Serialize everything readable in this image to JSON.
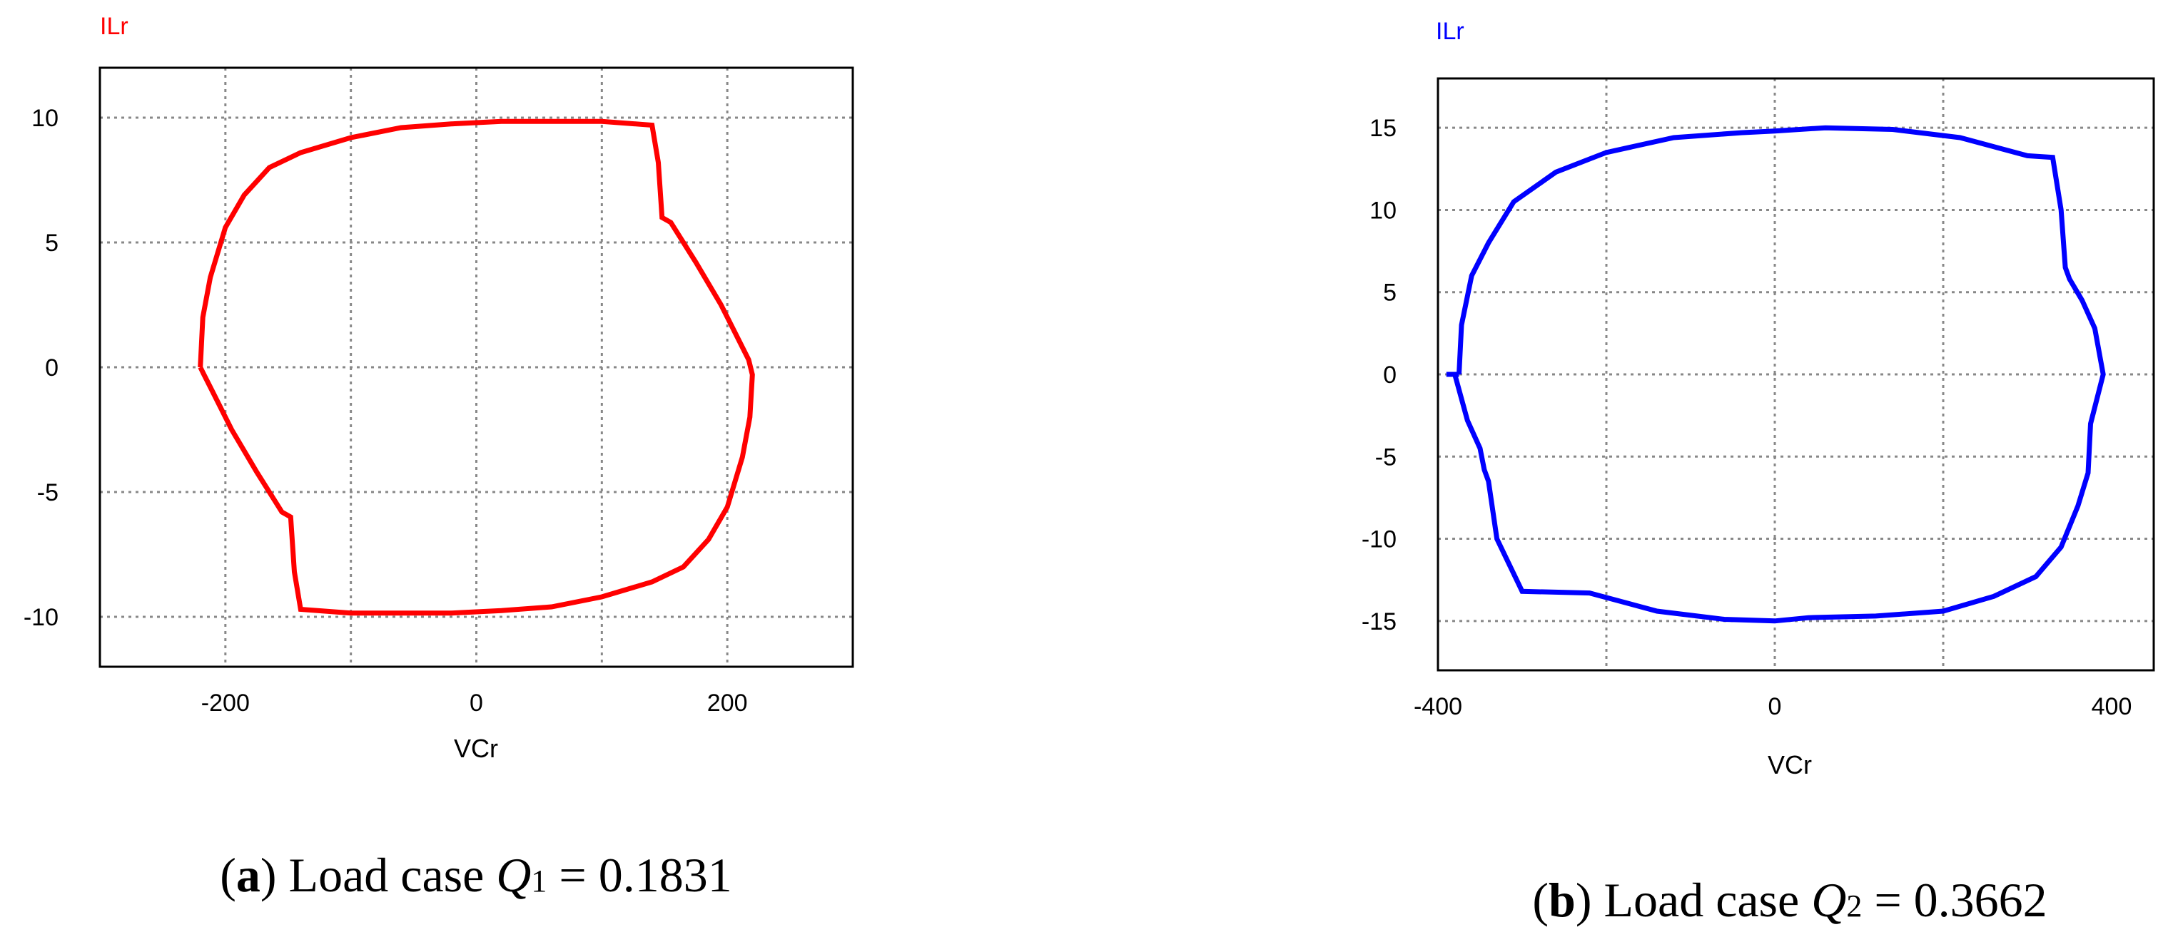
{
  "chart_data": [
    {
      "type": "line",
      "caption": {
        "panel": "a",
        "text": "Load case",
        "var": "Q",
        "sub": "1",
        "eq": "=",
        "val": "0.1831"
      },
      "ylabel": "ILr",
      "xlabel": "VCr",
      "xlim": [
        -300,
        300
      ],
      "ylim": [
        -12,
        12
      ],
      "xticks": [
        -200,
        0,
        200
      ],
      "yticks": [
        10,
        5,
        0,
        -5,
        -10
      ],
      "grid_x": [
        -200,
        -100,
        0,
        100,
        200
      ],
      "grid_y": [
        10,
        5,
        0,
        -5,
        -10
      ],
      "grid": true,
      "series": [
        {
          "color": "#ff0000",
          "x": [
            -220,
            -218,
            -212,
            -200,
            -185,
            -165,
            -140,
            -100,
            -60,
            -20,
            0,
            20,
            60,
            100,
            140,
            145,
            148,
            155,
            175,
            195,
            210,
            217,
            220,
            218,
            212,
            200,
            185,
            165,
            140,
            100,
            60,
            20,
            0,
            -20,
            -60,
            -100,
            -140,
            -145,
            -148,
            -155,
            -175,
            -195,
            -210,
            -217,
            -220
          ],
          "y": [
            0,
            2,
            3.6,
            5.6,
            6.9,
            8.0,
            8.6,
            9.2,
            9.6,
            9.75,
            9.8,
            9.85,
            9.85,
            9.85,
            9.7,
            8.2,
            6.0,
            5.8,
            4.2,
            2.5,
            1.0,
            0.3,
            -0.3,
            -2.0,
            -3.6,
            -5.6,
            -6.9,
            -8.0,
            -8.6,
            -9.2,
            -9.6,
            -9.75,
            -9.8,
            -9.85,
            -9.85,
            -9.85,
            -9.7,
            -8.2,
            -6.0,
            -5.8,
            -4.2,
            -2.5,
            -1.0,
            -0.3,
            0
          ]
        }
      ]
    },
    {
      "type": "line",
      "caption": {
        "panel": "b",
        "text": "Load case",
        "var": "Q",
        "sub": "2",
        "eq": "=",
        "val": "0.3662"
      },
      "ylabel": "ILr",
      "xlabel": "VCr",
      "xlim": [
        -400,
        450
      ],
      "ylim": [
        -18,
        18
      ],
      "xticks": [
        -400,
        0,
        400
      ],
      "yticks": [
        15,
        10,
        5,
        0,
        -5,
        -10,
        -15
      ],
      "grid_x": [
        -200,
        0,
        200
      ],
      "grid_y": [
        15,
        10,
        5,
        0,
        -5,
        -10,
        -15
      ],
      "grid": true,
      "series": [
        {
          "color": "#0000ff",
          "x": [
            -375,
            -372,
            -360,
            -340,
            -310,
            -260,
            -200,
            -120,
            -40,
            0,
            60,
            140,
            220,
            300,
            330,
            340,
            345,
            350,
            365,
            380,
            390,
            375,
            372,
            360,
            340,
            310,
            260,
            200,
            120,
            40,
            0,
            -60,
            -140,
            -220,
            -300,
            -330,
            -340,
            -345,
            -350,
            -365,
            -380,
            -390,
            -375
          ],
          "y": [
            0,
            3,
            6,
            8,
            10.5,
            12.3,
            13.5,
            14.4,
            14.7,
            14.8,
            15.0,
            14.9,
            14.4,
            13.3,
            13.2,
            10.0,
            6.5,
            5.8,
            4.5,
            2.8,
            0,
            -3,
            -6,
            -8,
            -10.5,
            -12.3,
            -13.5,
            -14.4,
            -14.7,
            -14.8,
            -15.0,
            -14.9,
            -14.4,
            -13.3,
            -13.2,
            -10.0,
            -6.5,
            -5.8,
            -4.5,
            -2.8,
            0,
            0,
            0
          ]
        }
      ]
    }
  ]
}
